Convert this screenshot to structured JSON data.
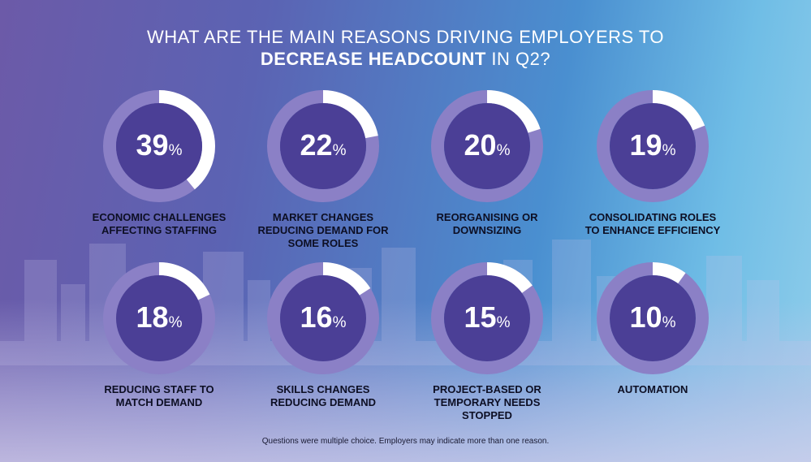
{
  "title": {
    "line1": "WHAT ARE THE MAIN REASONS DRIVING EMPLOYERS TO",
    "line2_bold": "DECREASE HEADCOUNT",
    "line2_rest": " IN Q2?"
  },
  "footnote": "Questions were multiple choice. Employers may indicate more than one reason.",
  "colors": {
    "ring_track": "#8b80c6",
    "ring_fill": "#ffffff",
    "ring_core": "#4b3f96",
    "label_text": "#0d0f24"
  },
  "chart_data": {
    "type": "pie",
    "title": "WHAT ARE THE MAIN REASONS DRIVING EMPLOYERS TO DECREASE HEADCOUNT IN Q2?",
    "unit": "%",
    "categories": [
      [
        "ECONOMIC CHALLENGES",
        "AFFECTING STAFFING"
      ],
      [
        "MARKET CHANGES",
        "REDUCING DEMAND FOR",
        "SOME ROLES"
      ],
      [
        "REORGANISING OR",
        "DOWNSIZING"
      ],
      [
        "CONSOLIDATING ROLES",
        "TO ENHANCE EFFICIENCY"
      ],
      [
        "REDUCING STAFF TO",
        "MATCH DEMAND"
      ],
      [
        "SKILLS CHANGES",
        "REDUCING DEMAND"
      ],
      [
        "PROJECT-BASED OR",
        "TEMPORARY NEEDS",
        "STOPPED"
      ],
      [
        "AUTOMATION"
      ]
    ],
    "values": [
      39,
      22,
      20,
      19,
      18,
      16,
      15,
      10
    ],
    "percent_symbol": "%"
  }
}
